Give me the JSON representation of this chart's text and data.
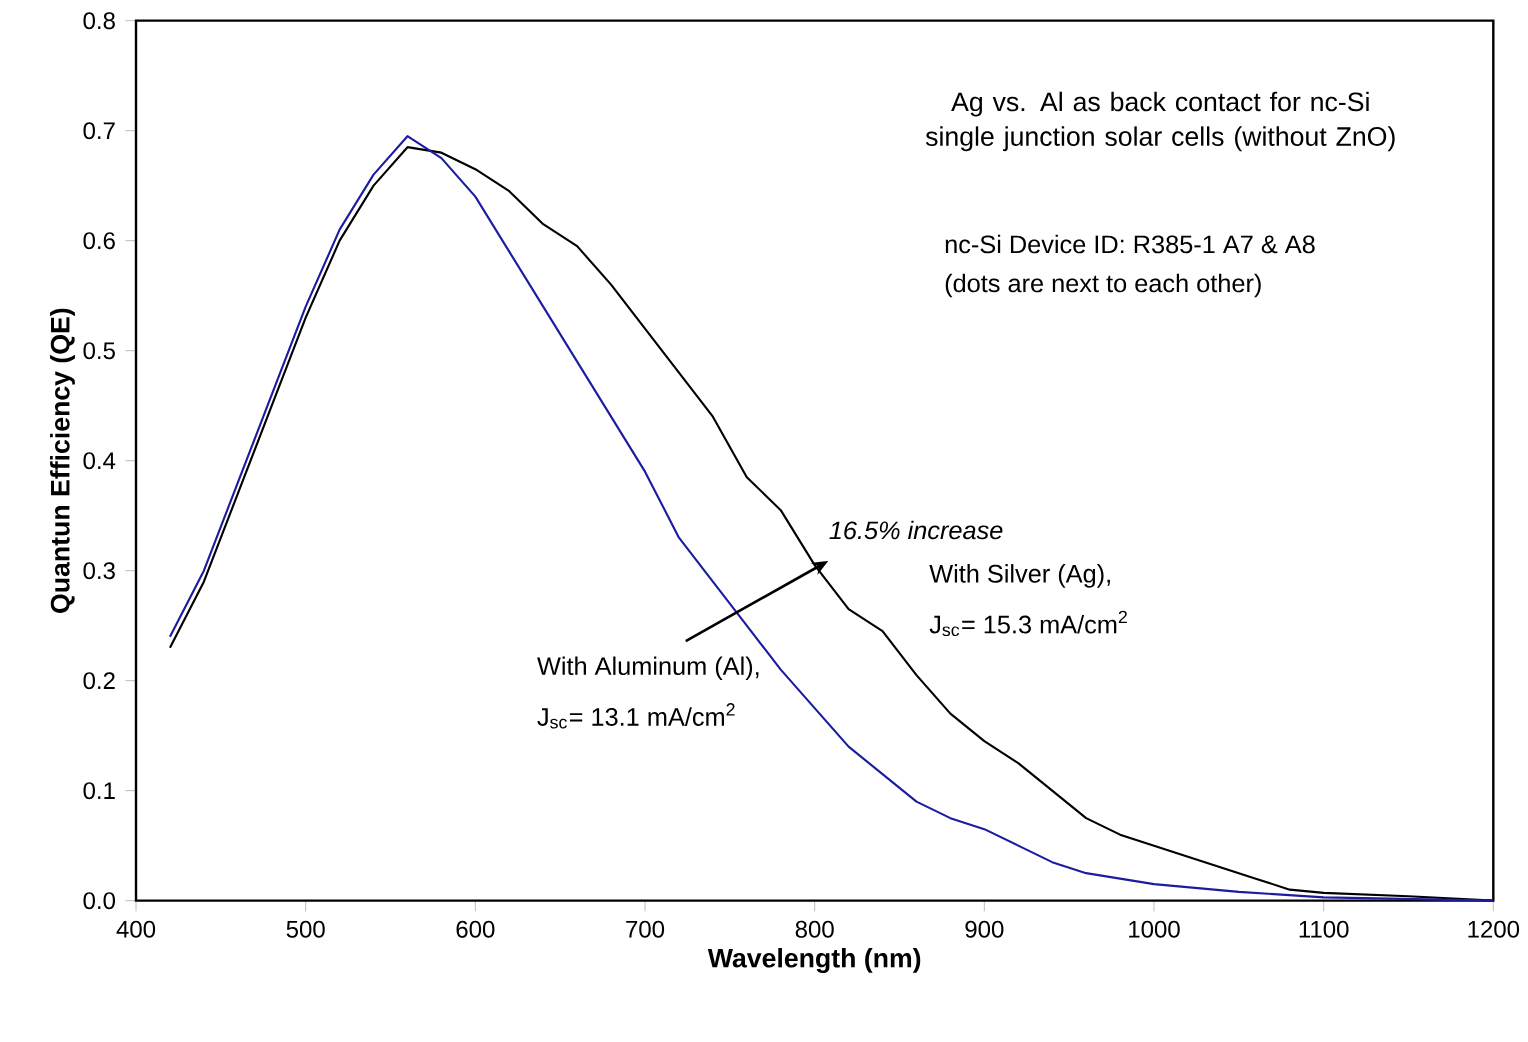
{
  "chart_data": {
    "type": "line",
    "title": "Ag vs. Al as back contact for nc-Si single junction solar cells (without ZnO)",
    "xlabel": "Wavelength (nm)",
    "ylabel": "Quantun Efficiency (QE)",
    "xlim": [
      400,
      1200
    ],
    "ylim": [
      0,
      0.8
    ],
    "xticks": [
      400,
      500,
      600,
      700,
      800,
      900,
      1000,
      1100,
      1200
    ],
    "yticks": [
      {
        "value": 0,
        "label": "0.0"
      },
      0.1,
      0.2,
      0.3,
      0.4,
      0.5,
      0.6,
      0.7,
      0.8
    ],
    "grid": false,
    "legend": false,
    "marker": "none",
    "line_style": "solid",
    "series": [
      {
        "name": "With Silver (Ag),",
        "color": "#000000",
        "x": [
          420,
          440,
          460,
          480,
          500,
          520,
          540,
          560,
          580,
          600,
          620,
          640,
          660,
          680,
          700,
          720,
          740,
          760,
          780,
          800,
          820,
          840,
          860,
          880,
          900,
          920,
          940,
          960,
          980,
          1000,
          1020,
          1040,
          1060,
          1080,
          1100,
          1150,
          1200
        ],
        "values": [
          0.23,
          0.29,
          0.37,
          0.45,
          0.53,
          0.6,
          0.65,
          0.685,
          0.68,
          0.665,
          0.645,
          0.615,
          0.595,
          0.56,
          0.52,
          0.48,
          0.44,
          0.385,
          0.355,
          0.305,
          0.265,
          0.245,
          0.205,
          0.17,
          0.145,
          0.125,
          0.1,
          0.075,
          0.06,
          0.05,
          0.04,
          0.03,
          0.02,
          0.01,
          0.007,
          0.004,
          0.0
        ]
      },
      {
        "name": "With Aluminum (Al),",
        "color": "#1c1ca0",
        "x": [
          420,
          440,
          460,
          480,
          500,
          520,
          540,
          560,
          580,
          600,
          620,
          640,
          660,
          680,
          700,
          720,
          740,
          760,
          780,
          800,
          820,
          840,
          860,
          880,
          900,
          920,
          940,
          960,
          980,
          1000,
          1050,
          1100,
          1200
        ],
        "values": [
          0.24,
          0.3,
          0.38,
          0.46,
          0.54,
          0.61,
          0.66,
          0.695,
          0.675,
          0.64,
          0.59,
          0.54,
          0.49,
          0.44,
          0.39,
          0.33,
          0.29,
          0.25,
          0.21,
          0.175,
          0.14,
          0.115,
          0.09,
          0.075,
          0.065,
          0.05,
          0.035,
          0.025,
          0.02,
          0.015,
          0.008,
          0.003,
          0.0
        ]
      }
    ],
    "annotations": [
      "nc-Si Device ID: R385-1 A7 & A8",
      "(dots are next to each other)",
      "16.5% increase",
      "J$_{sc}$= 15.3 mA/cm$^{2}$",
      "J$_{sc}$= 13.1 mA/cm$^{2}$"
    ]
  }
}
